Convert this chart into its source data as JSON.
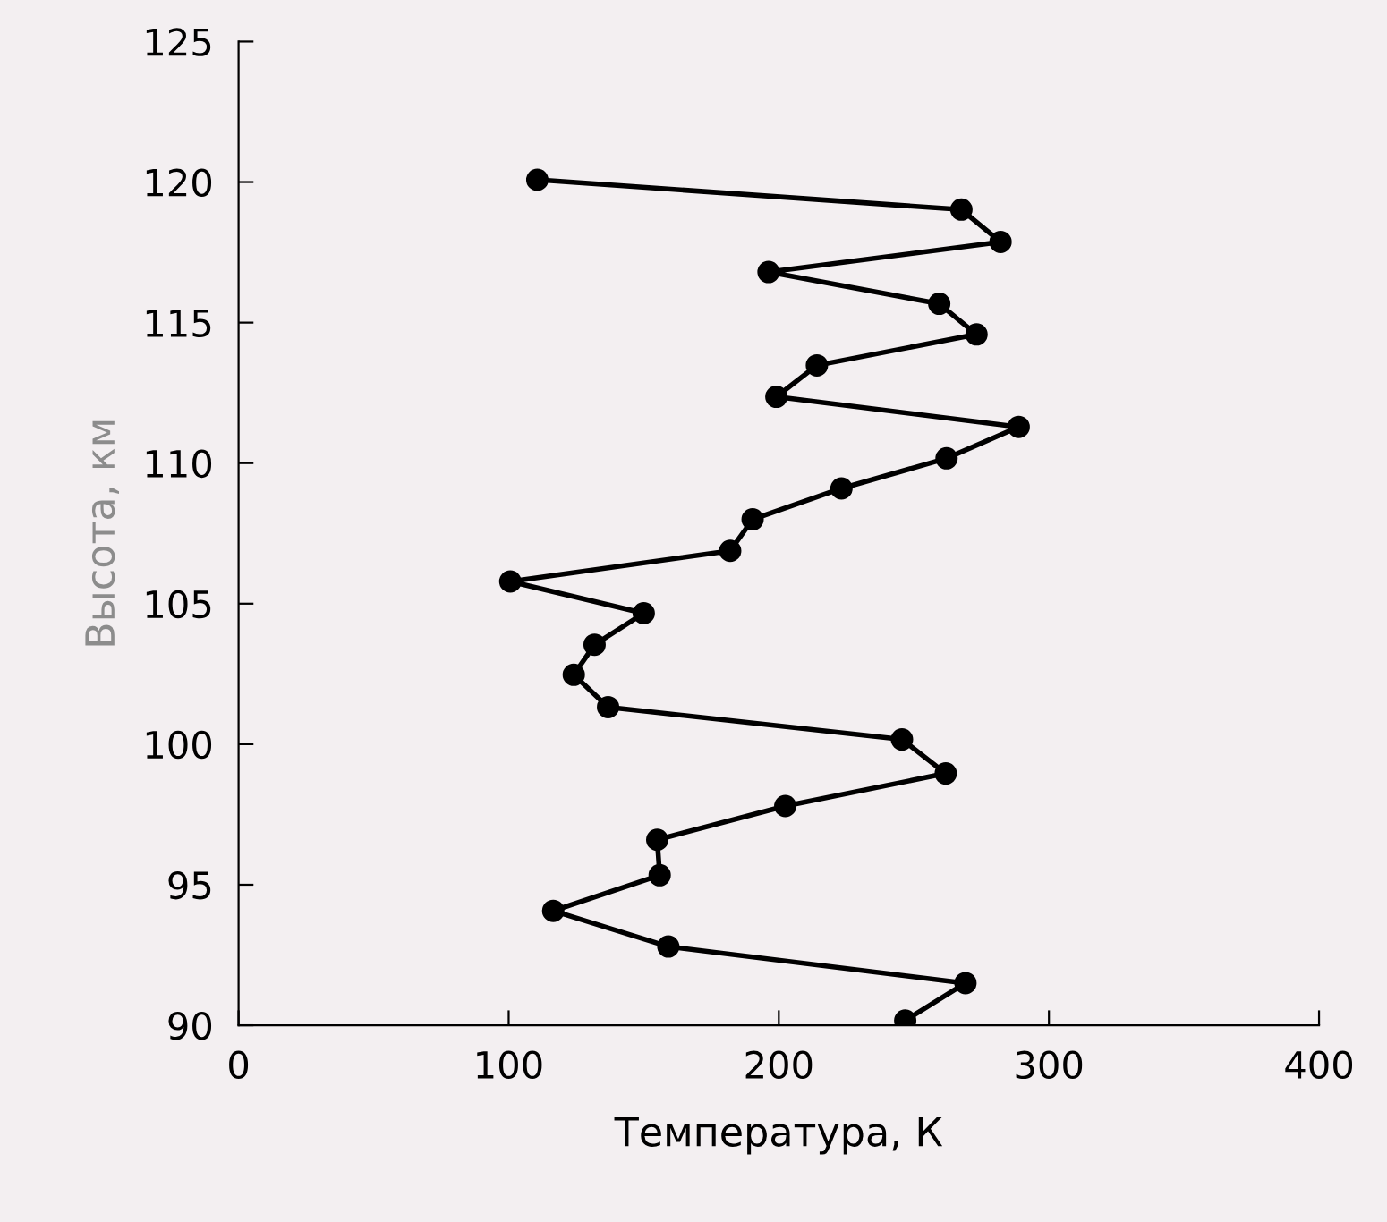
{
  "chart_data": {
    "type": "line",
    "xlabel": "Температура, К",
    "ylabel": "Высота, км",
    "series": [
      {
        "color": "#000000",
        "marker": "circle",
        "line_style": "solid",
        "x": [
          246.8,
          269.1,
          159.1,
          116.5,
          155.9,
          155,
          202.4,
          261.8,
          245.6,
          136.8,
          124.1,
          131.8,
          150,
          100.6,
          182,
          190.3,
          223.2,
          262.1,
          288.8,
          199.1,
          214.1,
          273.2,
          259.4,
          196.2,
          282.1,
          267.6,
          110.6
        ],
        "values": [
          90.17,
          91.5,
          92.8,
          94.07,
          95.34,
          96.6,
          97.8,
          98.96,
          100.17,
          101.32,
          102.47,
          103.54,
          104.66,
          105.79,
          106.88,
          108.0,
          109.1,
          110.17,
          111.29,
          112.36,
          113.48,
          114.58,
          115.67,
          116.8,
          117.87,
          119.02,
          120.08
        ]
      }
    ],
    "xlim": [
      0,
      400
    ],
    "xticks": [
      0,
      100,
      200,
      300,
      400
    ],
    "ylim": [
      90,
      125
    ],
    "yticks": [
      90,
      95,
      100,
      105,
      110,
      115,
      120,
      125
    ],
    "grid": false,
    "legend": false
  }
}
